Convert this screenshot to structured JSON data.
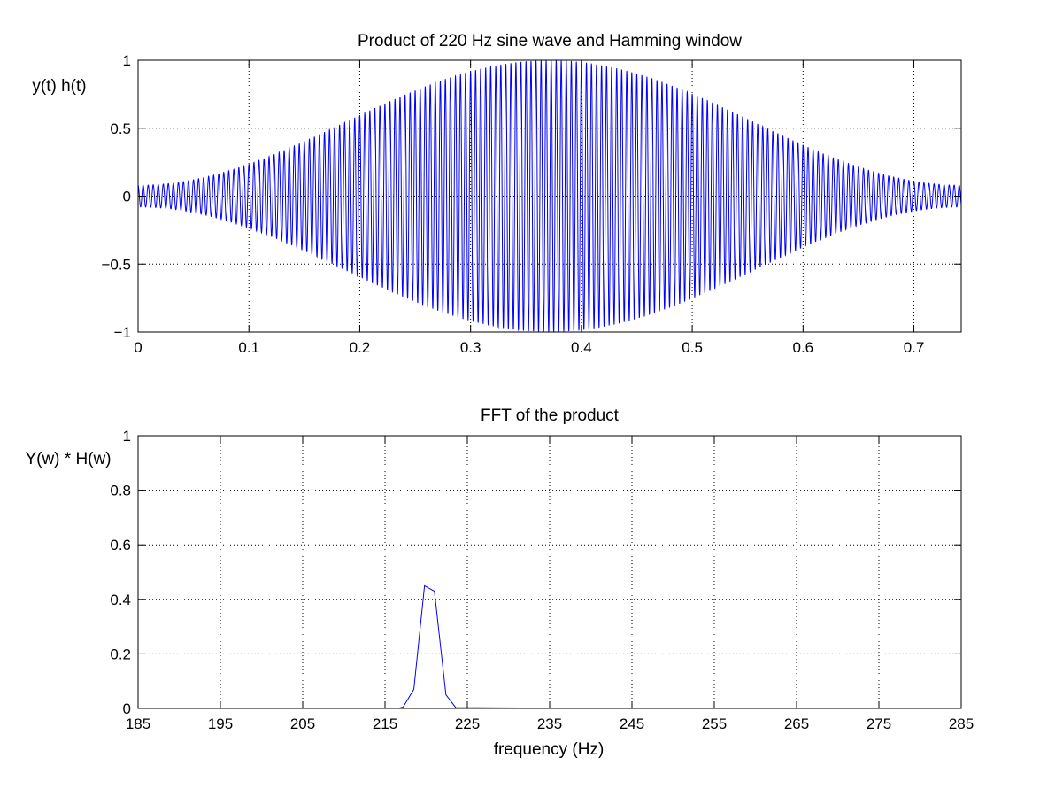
{
  "colors": {
    "line": "#0000ff",
    "axes": "#000000",
    "grid": "#000000",
    "background": "#ffffff"
  },
  "chart_data": [
    {
      "type": "line",
      "title": "Product of 220 Hz sine wave and Hamming window",
      "xlabel": "",
      "ylabel": "y(t) h(t)",
      "xlim": [
        0,
        0.7427
      ],
      "ylim": [
        -1,
        1
      ],
      "xticks": [
        0,
        0.1,
        0.2,
        0.3,
        0.4,
        0.5,
        0.6,
        0.7
      ],
      "xtick_labels": [
        "0",
        "0.1",
        "0.2",
        "0.3",
        "0.4",
        "0.5",
        "0.6",
        "0.7"
      ],
      "yticks": [
        -1,
        -0.5,
        0,
        0.5,
        1
      ],
      "ytick_labels": [
        "−1",
        "−0.5",
        "0",
        "0.5",
        "1"
      ],
      "grid": true,
      "signal": {
        "frequency_hz": 220,
        "duration_s": 0.7427,
        "window": "hamming",
        "peak_amplitude": 1
      }
    },
    {
      "type": "line",
      "title": "FFT of the product",
      "xlabel": "frequency (Hz)",
      "ylabel": "Y(w) * H(w)",
      "xlim": [
        185,
        285
      ],
      "ylim": [
        0,
        1
      ],
      "xticks": [
        185,
        195,
        205,
        215,
        225,
        235,
        245,
        255,
        265,
        275,
        285
      ],
      "xtick_labels": [
        "185",
        "195",
        "205",
        "215",
        "225",
        "235",
        "245",
        "255",
        "265",
        "275",
        "285"
      ],
      "yticks": [
        0,
        0.2,
        0.4,
        0.6,
        0.8,
        1
      ],
      "ytick_labels": [
        "0",
        "0.2",
        "0.4",
        "0.6",
        "0.8",
        "1"
      ],
      "grid": true,
      "x": [
        199,
        216.5,
        217.2,
        218.5,
        219.8,
        221.0,
        222.4,
        223.6,
        240.4
      ],
      "y": [
        0,
        0,
        0.005,
        0.07,
        0.45,
        0.43,
        0.05,
        0.003,
        0
      ]
    }
  ]
}
